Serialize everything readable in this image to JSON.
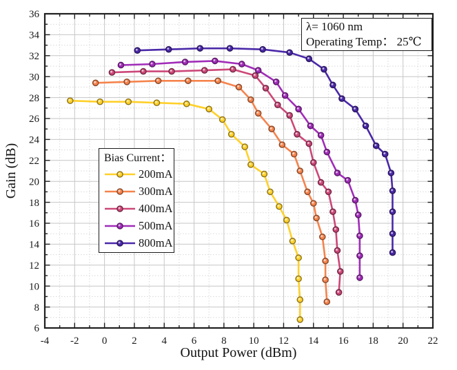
{
  "annotation": {
    "line1": "λ= 1060 nm",
    "line2": "Operating Temp： 25℃"
  },
  "legend": {
    "title": "Bias Current："
  },
  "chart_data": {
    "type": "line",
    "title": "",
    "xlabel": "Output Power (dBm)",
    "ylabel": "Gain (dB)",
    "xlim": [
      -4,
      22
    ],
    "ylim": [
      6,
      36
    ],
    "xticks": [
      -4,
      -2,
      0,
      2,
      4,
      6,
      8,
      10,
      12,
      14,
      16,
      18,
      20,
      22
    ],
    "yticks": [
      6,
      8,
      10,
      12,
      14,
      16,
      18,
      20,
      22,
      24,
      26,
      28,
      30,
      32,
      34,
      36
    ],
    "minor_step_x": 1,
    "minor_step_y": 1,
    "grid": true,
    "legend_position": "left-middle",
    "series": [
      {
        "name": "200mA",
        "color": "#FFD02A",
        "points": [
          [
            -2.3,
            27.7
          ],
          [
            -0.3,
            27.6
          ],
          [
            1.6,
            27.6
          ],
          [
            3.5,
            27.5
          ],
          [
            5.5,
            27.4
          ],
          [
            7.0,
            26.9
          ],
          [
            7.9,
            25.9
          ],
          [
            8.5,
            24.5
          ],
          [
            9.4,
            23.3
          ],
          [
            9.8,
            21.6
          ],
          [
            10.7,
            20.7
          ],
          [
            11.1,
            19.0
          ],
          [
            11.7,
            17.6
          ],
          [
            12.2,
            16.3
          ],
          [
            12.6,
            14.3
          ],
          [
            13.0,
            12.7
          ],
          [
            13.0,
            10.7
          ],
          [
            13.1,
            8.7
          ],
          [
            13.1,
            6.8
          ]
        ]
      },
      {
        "name": "300mA",
        "color": "#F5834C",
        "points": [
          [
            -0.6,
            29.4
          ],
          [
            1.5,
            29.5
          ],
          [
            3.6,
            29.6
          ],
          [
            5.6,
            29.6
          ],
          [
            7.6,
            29.6
          ],
          [
            9.0,
            29.0
          ],
          [
            9.8,
            27.8
          ],
          [
            10.3,
            26.5
          ],
          [
            11.2,
            25.0
          ],
          [
            11.9,
            23.5
          ],
          [
            12.7,
            22.6
          ],
          [
            13.1,
            21.0
          ],
          [
            13.6,
            19.0
          ],
          [
            14.0,
            17.9
          ],
          [
            14.2,
            16.5
          ],
          [
            14.6,
            14.7
          ],
          [
            14.8,
            12.4
          ],
          [
            14.8,
            10.6
          ],
          [
            14.9,
            8.5
          ]
        ]
      },
      {
        "name": "400mA",
        "color": "#CC4778",
        "points": [
          [
            0.5,
            30.4
          ],
          [
            2.6,
            30.5
          ],
          [
            4.5,
            30.5
          ],
          [
            6.7,
            30.6
          ],
          [
            8.6,
            30.7
          ],
          [
            10.1,
            30.1
          ],
          [
            10.8,
            28.9
          ],
          [
            11.6,
            27.3
          ],
          [
            12.4,
            26.3
          ],
          [
            12.9,
            24.5
          ],
          [
            13.7,
            23.6
          ],
          [
            14.0,
            21.8
          ],
          [
            14.5,
            19.9
          ],
          [
            15.0,
            19.0
          ],
          [
            15.3,
            17.1
          ],
          [
            15.5,
            15.4
          ],
          [
            15.6,
            13.4
          ],
          [
            15.8,
            11.4
          ],
          [
            15.7,
            9.4
          ]
        ]
      },
      {
        "name": "500mA",
        "color": "#A02CB8",
        "points": [
          [
            1.1,
            31.1
          ],
          [
            3.2,
            31.2
          ],
          [
            5.4,
            31.4
          ],
          [
            7.4,
            31.5
          ],
          [
            9.2,
            31.2
          ],
          [
            10.3,
            30.6
          ],
          [
            11.5,
            29.5
          ],
          [
            12.1,
            28.2
          ],
          [
            13.0,
            26.9
          ],
          [
            13.8,
            25.3
          ],
          [
            14.5,
            24.4
          ],
          [
            14.9,
            22.8
          ],
          [
            15.6,
            20.8
          ],
          [
            16.3,
            20.1
          ],
          [
            16.8,
            18.2
          ],
          [
            17.0,
            16.8
          ],
          [
            17.1,
            14.8
          ],
          [
            17.1,
            12.9
          ],
          [
            17.1,
            10.8
          ]
        ]
      },
      {
        "name": "800mA",
        "color": "#4A28A8",
        "points": [
          [
            2.2,
            32.5
          ],
          [
            4.3,
            32.6
          ],
          [
            6.4,
            32.7
          ],
          [
            8.4,
            32.7
          ],
          [
            10.6,
            32.6
          ],
          [
            12.4,
            32.3
          ],
          [
            13.7,
            31.7
          ],
          [
            14.7,
            30.7
          ],
          [
            15.3,
            29.2
          ],
          [
            15.9,
            27.9
          ],
          [
            16.8,
            26.9
          ],
          [
            17.5,
            25.3
          ],
          [
            18.2,
            23.4
          ],
          [
            18.8,
            22.6
          ],
          [
            19.2,
            20.8
          ],
          [
            19.3,
            19.1
          ],
          [
            19.3,
            17.1
          ],
          [
            19.3,
            15.0
          ],
          [
            19.3,
            13.2
          ]
        ]
      }
    ]
  }
}
